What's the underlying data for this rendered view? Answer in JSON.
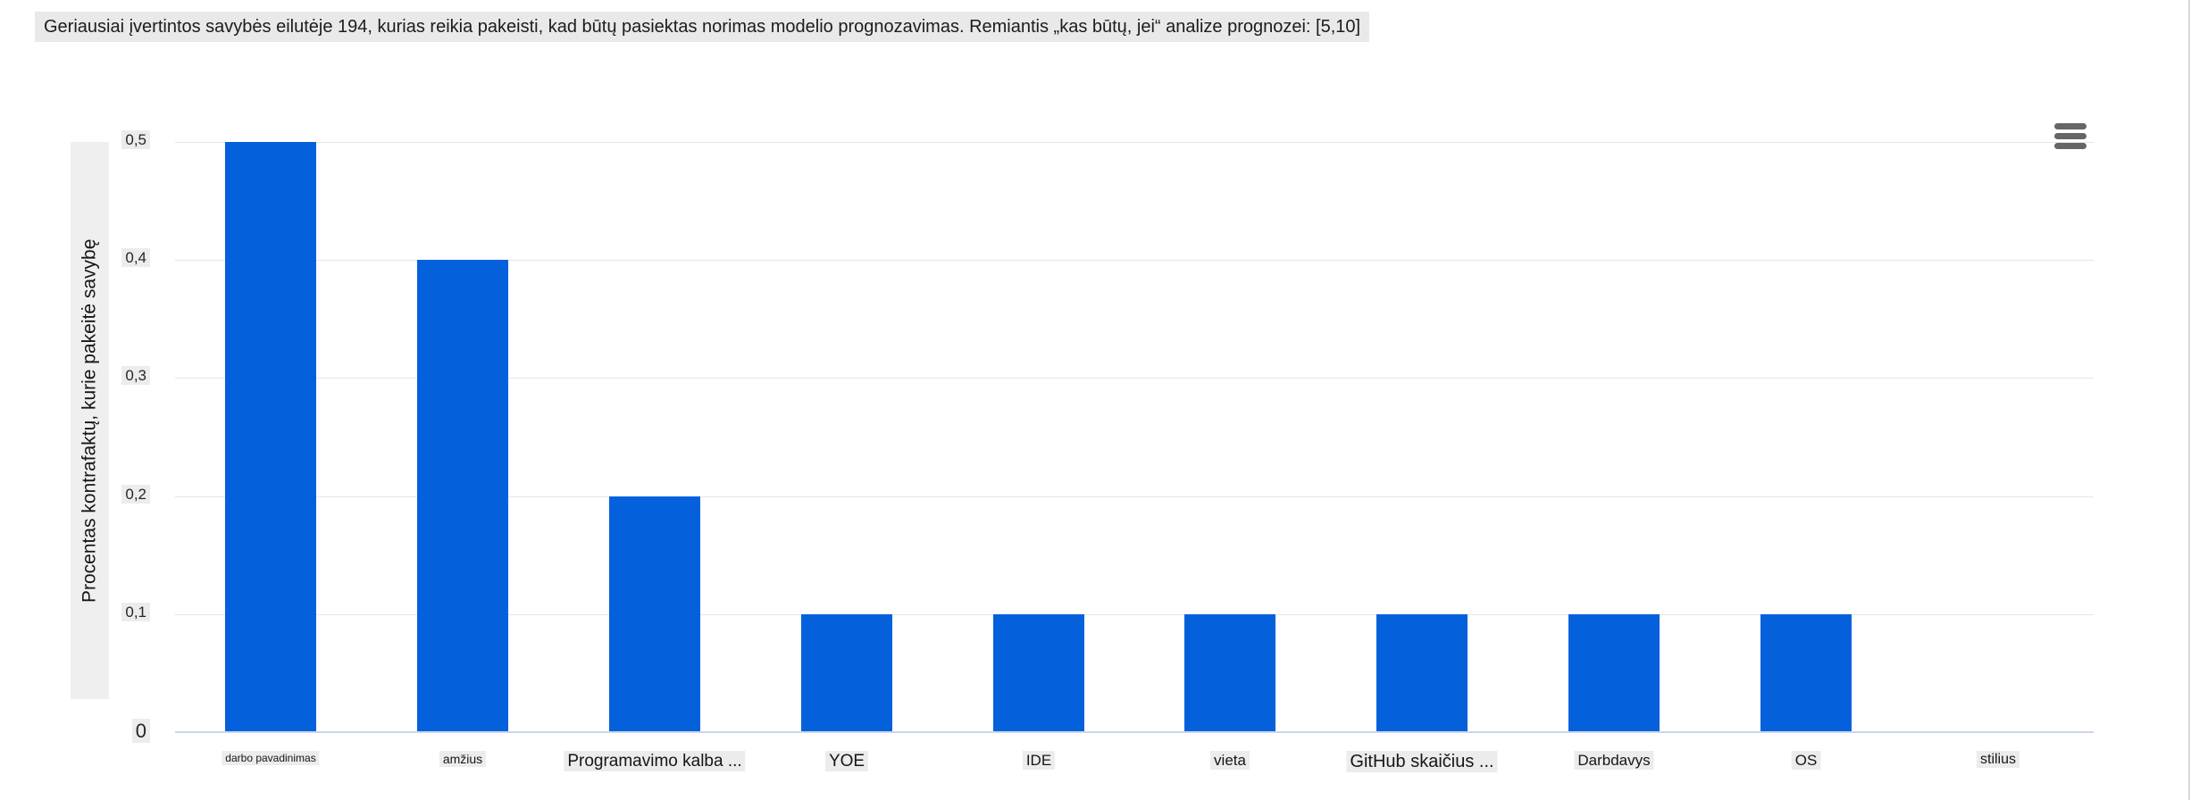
{
  "title": "Geriausiai įvertintos savybės eilutėje 194, kurias reikia pakeisti, kad būtų pasiektas norimas modelio prognozavimas. Remiantis „kas būtų, jei“ analize prognozei: [5,10]",
  "menu_icon": "hamburger-icon",
  "chart_data": {
    "type": "bar",
    "title": "Geriausiai įvertintos savybės eilutėje 194, kurias reikia pakeisti, kad būtų pasiektas norimas modelio prognozavimas. Remiantis „kas būtų, jei“ analize prognozei: [5,10]",
    "categories": [
      "darbo pavadinimas",
      "amžius",
      "Programavimo kalba ...",
      "YOE",
      "IDE",
      "vieta",
      "GitHub skaičius ...",
      "Darbdavys",
      "OS",
      "stilius"
    ],
    "values": [
      0.5,
      0.4,
      0.2,
      0.1,
      0.1,
      0.1,
      0.1,
      0.1,
      0.1,
      0
    ],
    "xlabel": "",
    "ylabel": "Procentas kontrafaktų, kurie pakeitė savybę",
    "ylim": [
      0,
      0.5
    ],
    "ytick_values": [
      0,
      0.1,
      0.2,
      0.3,
      0.4,
      0.5
    ],
    "ytick_labels": [
      "0",
      "0,1",
      "0,2",
      "0,3",
      "0,4",
      "0,5"
    ],
    "grid": true,
    "legend": "none",
    "bar_color": "#0561db",
    "gridline_color": "#e6e6e6",
    "axis_line_color": "#ccd6eb",
    "label_background": "#ececec",
    "menu_icon_color": "#666666"
  }
}
